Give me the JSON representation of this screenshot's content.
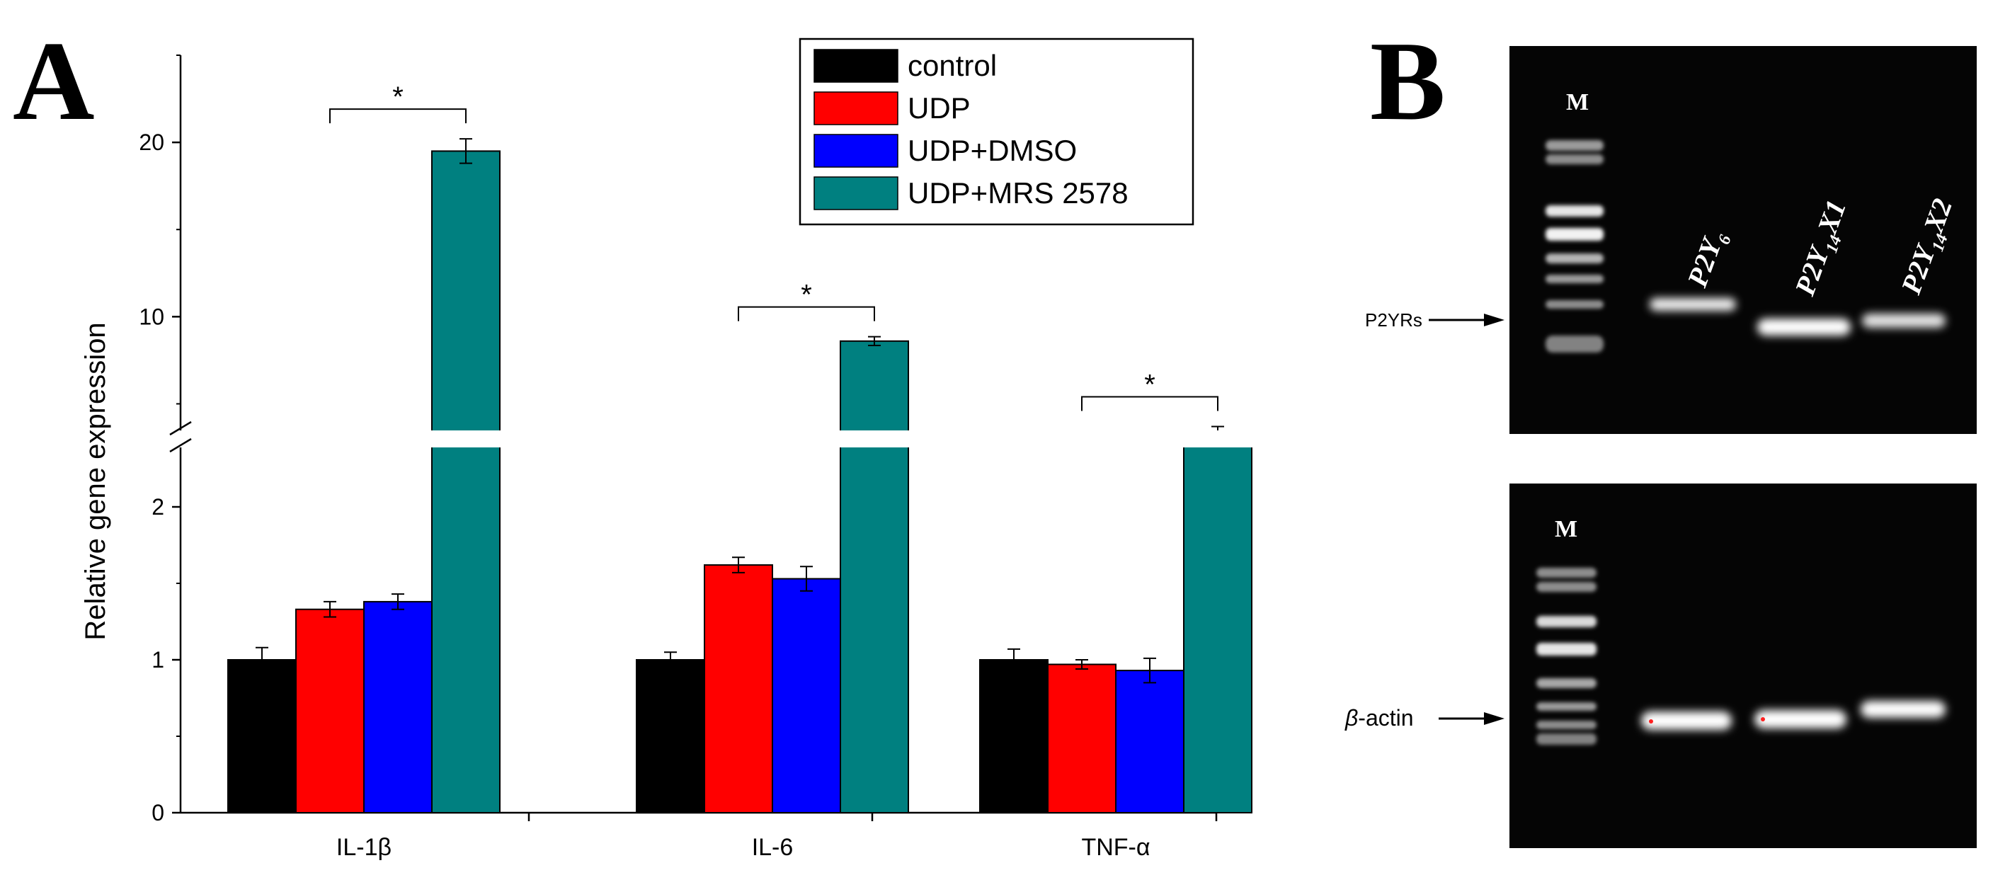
{
  "panel_a": {
    "letter": "A",
    "chart_data": {
      "type": "bar",
      "title": "",
      "xlabel": "",
      "ylabel": "Relative gene expression",
      "axis_break": {
        "lower_range": [
          0,
          2.5
        ],
        "upper_range": [
          2.5,
          25
        ]
      },
      "yticks_lower": [
        "0",
        "1",
        "2"
      ],
      "yticks_upper": [
        "10",
        "20"
      ],
      "ytick_values_lower": [
        0,
        1,
        2
      ],
      "ytick_values_upper": [
        10,
        20
      ],
      "categories": [
        "IL-1β",
        "IL-6",
        "TNF-α"
      ],
      "series": [
        {
          "name": "control",
          "color": "#000000",
          "values": [
            1.0,
            1.0,
            1.0
          ],
          "errors": [
            0.08,
            0.05,
            0.07
          ]
        },
        {
          "name": "UDP",
          "color": "#ff0000",
          "values": [
            1.33,
            1.62,
            0.97
          ],
          "errors": [
            0.05,
            0.05,
            0.03
          ]
        },
        {
          "name": "UDP+DMSO",
          "color": "#0000ff",
          "values": [
            1.38,
            1.53,
            0.93
          ],
          "errors": [
            0.05,
            0.08,
            0.08
          ]
        },
        {
          "name": "UDP+MRS 2578",
          "color": "#008080",
          "values": [
            19.5,
            8.6,
            3.2
          ],
          "errors": [
            0.7,
            0.25,
            0.5
          ]
        }
      ],
      "significance": [
        {
          "category": "IL-1β",
          "label": "*"
        },
        {
          "category": "IL-6",
          "label": "*"
        },
        {
          "category": "TNF-α",
          "label": "*"
        }
      ],
      "legend_position": "top-right"
    }
  },
  "panel_b": {
    "letter": "B",
    "top_gel": {
      "marker_label": "M",
      "arrow_label": "P2YRs",
      "lanes": [
        {
          "base": "P2Y",
          "sub": "6",
          "suffix": ""
        },
        {
          "base": "P2Y",
          "sub": "14",
          "suffix": "X1"
        },
        {
          "base": "P2Y",
          "sub": "14",
          "suffix": "X2"
        }
      ]
    },
    "bottom_gel": {
      "marker_label": "M",
      "arrow_label_greek": "β",
      "arrow_label_rest": "-actin"
    }
  }
}
